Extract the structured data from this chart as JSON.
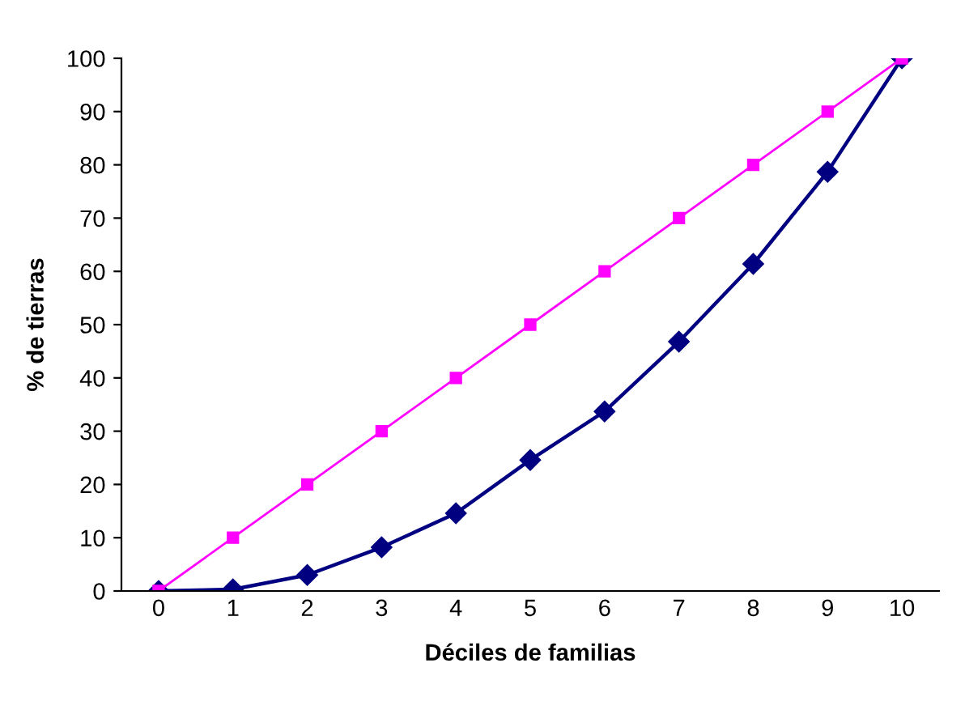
{
  "chart_data": {
    "type": "line",
    "xlabel": "Déciles de familias",
    "ylabel": "% de tierras",
    "categories": [
      "0",
      "1",
      "2",
      "3",
      "4",
      "5",
      "6",
      "7",
      "8",
      "9",
      "10"
    ],
    "series": [
      {
        "color": "#000080",
        "marker": "diamond",
        "values": [
          0,
          0.3,
          3,
          8.2,
          14.6,
          24.6,
          33.7,
          46.8,
          61.4,
          78.7,
          100
        ]
      },
      {
        "color": "#ff00ff",
        "marker": "square",
        "values": [
          0,
          10,
          20,
          30,
          40,
          50,
          60,
          70,
          80,
          90,
          100
        ]
      }
    ],
    "ylim": [
      0,
      100
    ],
    "yticks": [
      0,
      10,
      20,
      30,
      40,
      50,
      60,
      70,
      80,
      90,
      100
    ],
    "grid": false
  }
}
